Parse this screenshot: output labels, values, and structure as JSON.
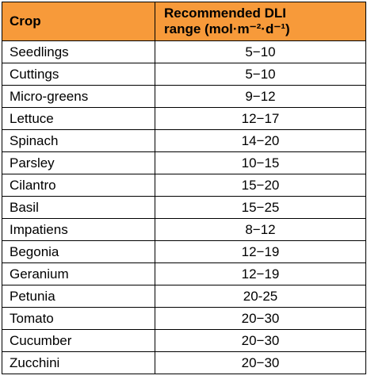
{
  "table": {
    "header": {
      "crop": "Crop",
      "dli_line1": "Recommended DLI",
      "dli_line2": "range (mol·m⁻²·d⁻¹)"
    },
    "rows": [
      {
        "crop": "Seedlings",
        "range": "5−10"
      },
      {
        "crop": "Cuttings",
        "range": "5−10"
      },
      {
        "crop": "Micro-greens",
        "range": "9−12"
      },
      {
        "crop": "Lettuce",
        "range": "12−17"
      },
      {
        "crop": "Spinach",
        "range": "14−20"
      },
      {
        "crop": "Parsley",
        "range": "10−15"
      },
      {
        "crop": "Cilantro",
        "range": "15−20"
      },
      {
        "crop": "Basil",
        "range": "15−25"
      },
      {
        "crop": "Impatiens",
        "range": "8−12"
      },
      {
        "crop": "Begonia",
        "range": "12−19"
      },
      {
        "crop": "Geranium",
        "range": "12−19"
      },
      {
        "crop": "Petunia",
        "range": "20-25"
      },
      {
        "crop": "Tomato",
        "range": "20−30"
      },
      {
        "crop": "Cucumber",
        "range": "20−30"
      },
      {
        "crop": "Zucchini",
        "range": "20−30"
      }
    ],
    "colors": {
      "header_background": "#F79A3A",
      "border": "#000000",
      "text": "#000000"
    }
  }
}
